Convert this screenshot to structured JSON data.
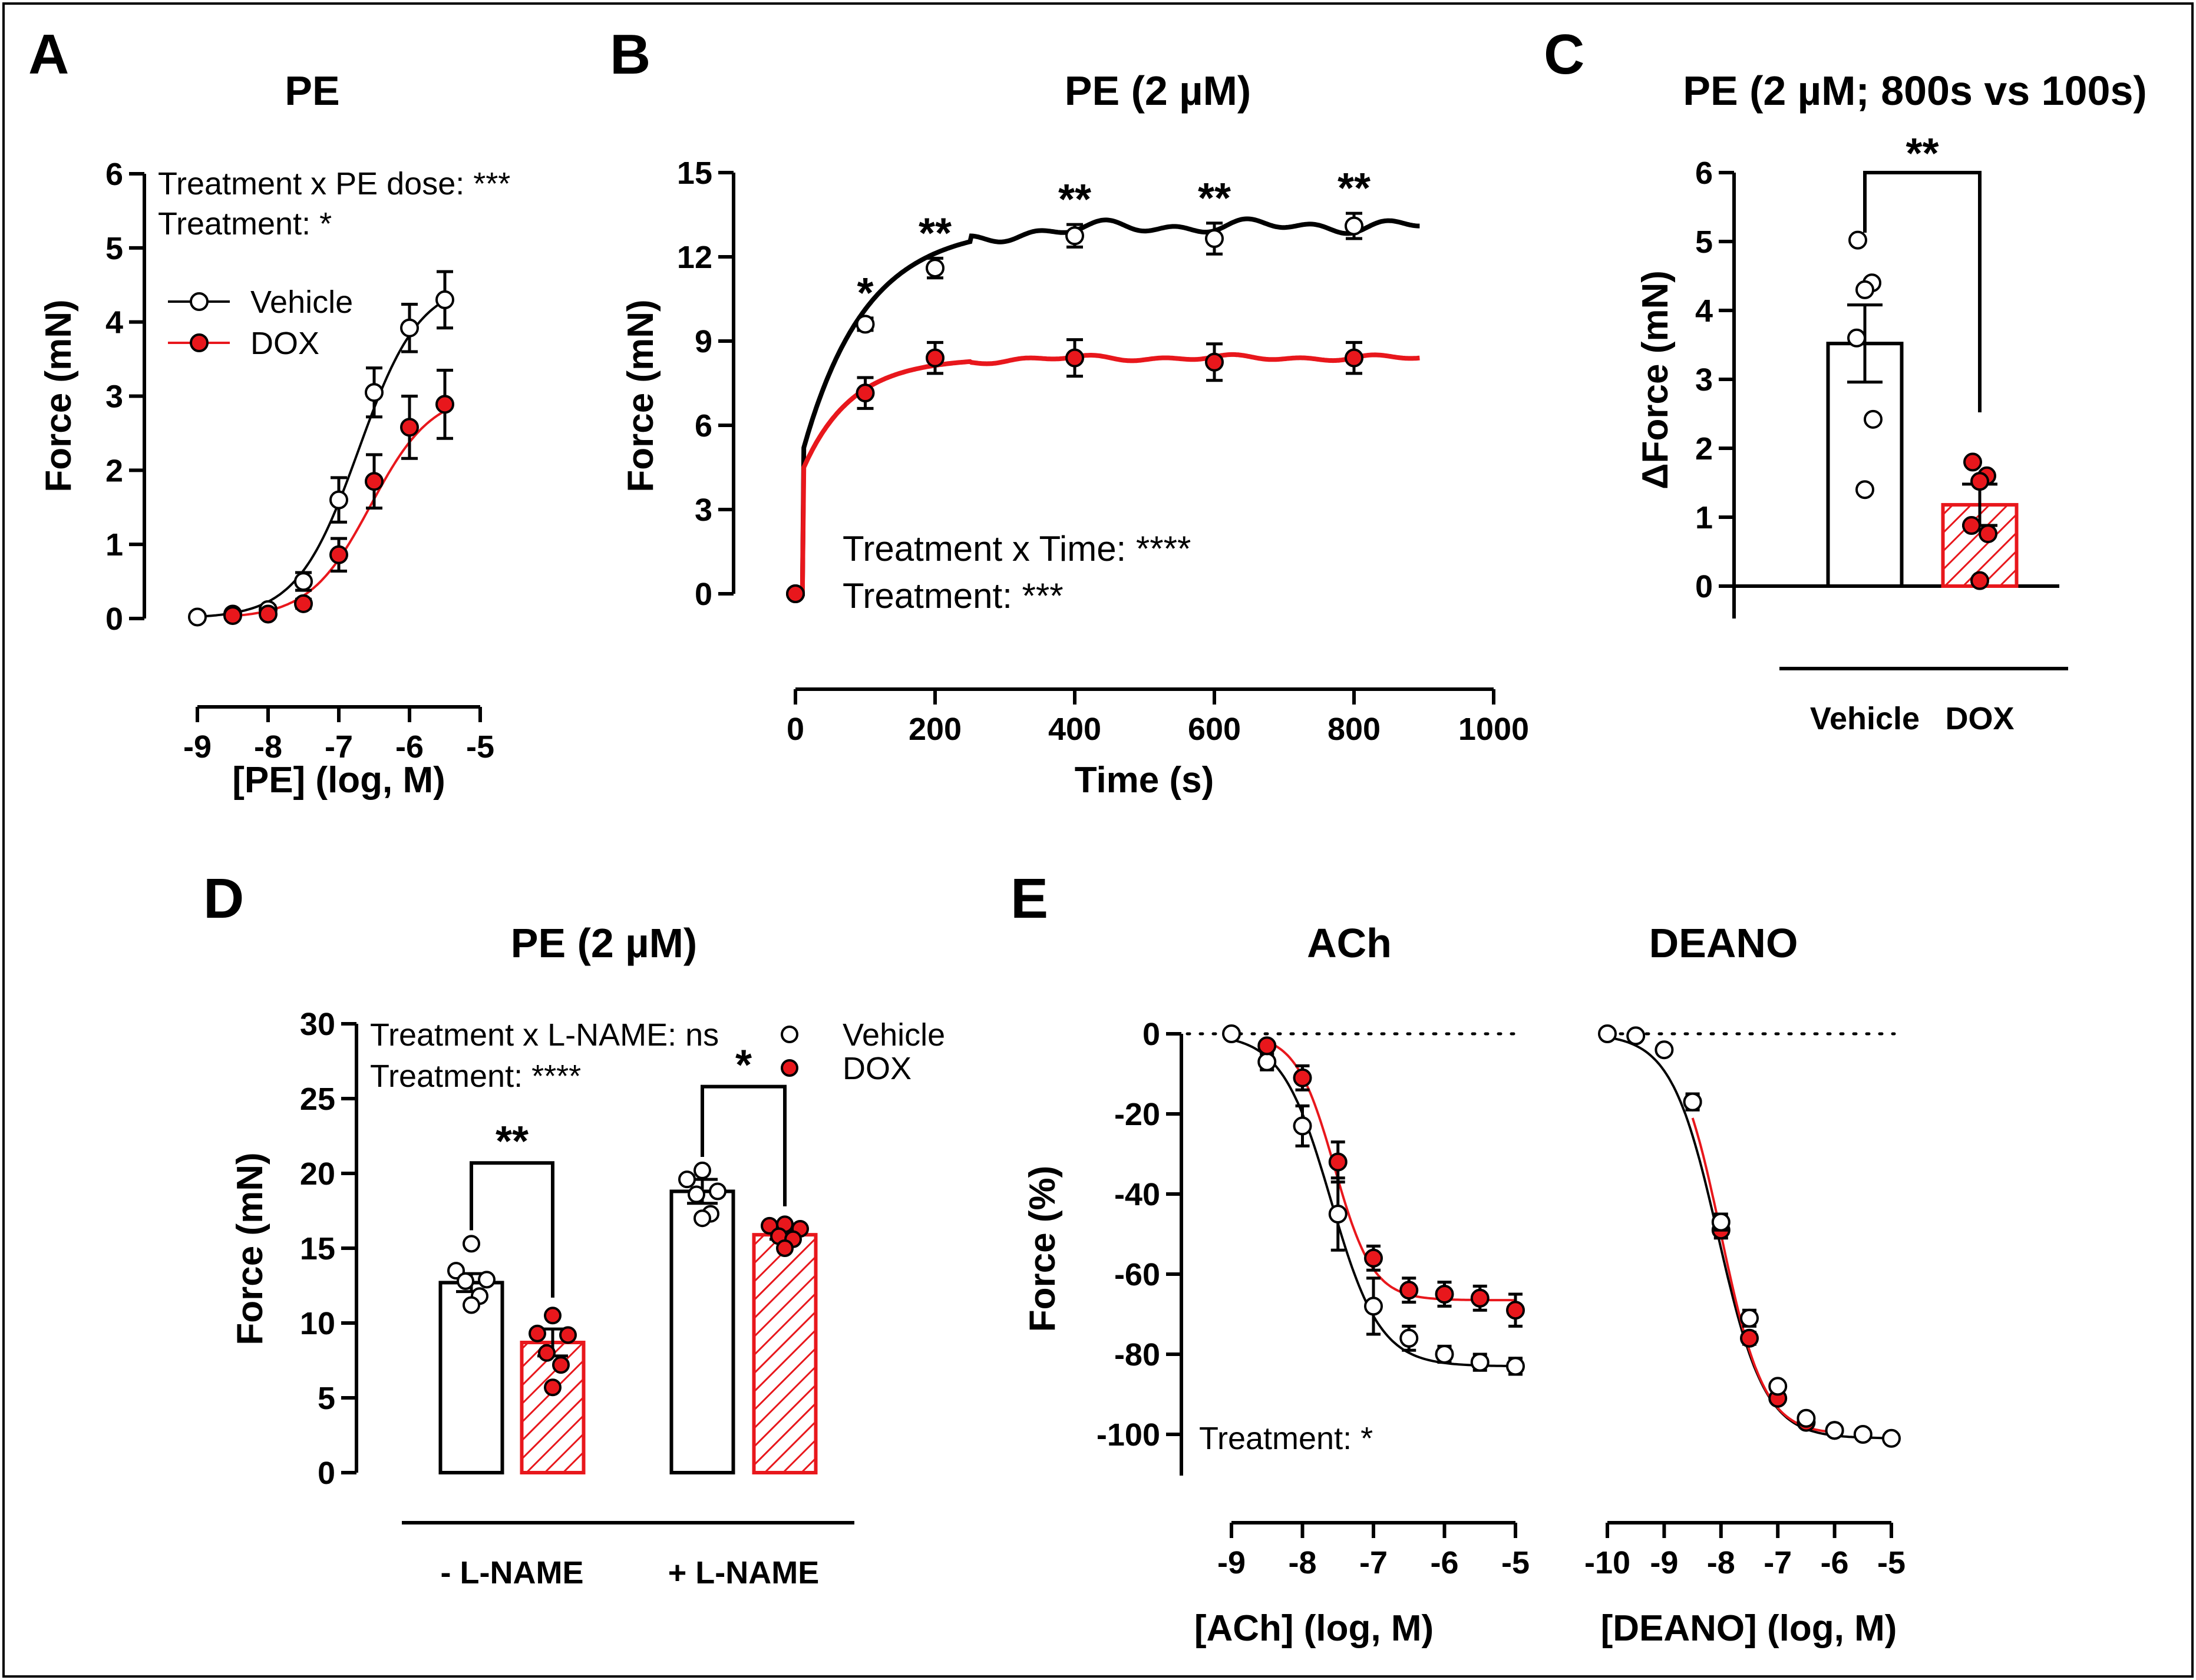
{
  "colors": {
    "vehicle": "#000000",
    "dox": "#e8171c",
    "white": "#ffffff"
  },
  "chart_data": [
    {
      "panel": "A",
      "type": "line",
      "title": "PE",
      "xlabel": "[PE] (log, M)",
      "ylabel": "Force (mN)",
      "xlim": [
        -9,
        -5
      ],
      "ylim": [
        0,
        6
      ],
      "xticks": [
        -9,
        -8,
        -7,
        -6,
        -5
      ],
      "yticks": [
        0,
        1,
        2,
        3,
        4,
        5,
        6
      ],
      "annotations": [
        "Treatment x PE dose: ***",
        "Treatment: *"
      ],
      "legend": [
        "Vehicle",
        "DOX"
      ],
      "series": [
        {
          "name": "Vehicle",
          "x": [
            -9,
            -8.5,
            -8,
            -7.5,
            -7,
            -6.5,
            -6,
            -5.5
          ],
          "y": [
            0.02,
            0.06,
            0.12,
            0.5,
            1.6,
            3.05,
            3.92,
            4.3
          ],
          "err": [
            0.02,
            0.03,
            0.05,
            0.12,
            0.3,
            0.33,
            0.32,
            0.38
          ]
        },
        {
          "name": "DOX",
          "x": [
            -8.5,
            -8,
            -7.5,
            -7,
            -6.5,
            -6,
            -5.5
          ],
          "y": [
            0.04,
            0.06,
            0.2,
            0.86,
            1.85,
            2.58,
            2.89
          ],
          "err": [
            0.02,
            0.03,
            0.06,
            0.22,
            0.36,
            0.42,
            0.46
          ]
        }
      ]
    },
    {
      "panel": "B",
      "type": "line",
      "title": "PE (2 µM)",
      "xlabel": "Time (s)",
      "ylabel": "Force (mN)",
      "xlim": [
        0,
        1000
      ],
      "ylim": [
        0,
        15
      ],
      "xticks": [
        0,
        200,
        400,
        600,
        800,
        1000
      ],
      "yticks": [
        0,
        3,
        6,
        9,
        12,
        15
      ],
      "annotations": [
        "Treatment x Time: ****",
        "Treatment: ***"
      ],
      "significance": [
        {
          "x": 100,
          "label": "*"
        },
        {
          "x": 200,
          "label": "**"
        },
        {
          "x": 400,
          "label": "**"
        },
        {
          "x": 600,
          "label": "**"
        },
        {
          "x": 800,
          "label": "**"
        }
      ],
      "series": [
        {
          "name": "Vehicle",
          "x": [
            0,
            100,
            200,
            400,
            600,
            800
          ],
          "y": [
            0,
            9.6,
            11.6,
            12.75,
            12.65,
            13.1
          ],
          "err": [
            0,
            0.22,
            0.35,
            0.4,
            0.55,
            0.45
          ]
        },
        {
          "name": "DOX",
          "x": [
            0,
            100,
            200,
            400,
            600,
            800
          ],
          "y": [
            0,
            7.15,
            8.4,
            8.4,
            8.25,
            8.4
          ],
          "err": [
            0,
            0.55,
            0.55,
            0.65,
            0.65,
            0.55
          ]
        }
      ]
    },
    {
      "panel": "C",
      "type": "bar",
      "title": "PE (2 µM; 800s vs 100s)",
      "xlabel": "",
      "ylabel": "ΔForce (mN)",
      "ylim": [
        0,
        6
      ],
      "yticks": [
        0,
        1,
        2,
        3,
        4,
        5,
        6
      ],
      "categories": [
        "Vehicle",
        "DOX"
      ],
      "values": [
        3.52,
        1.18
      ],
      "err": [
        0.56,
        0.3
      ],
      "points": [
        [
          5.02,
          4.4,
          4.3,
          3.6,
          2.42,
          1.4
        ],
        [
          1.8,
          1.6,
          1.52,
          0.88,
          0.76,
          0.08
        ]
      ],
      "significance": "**"
    },
    {
      "panel": "D",
      "type": "bar",
      "title": "PE (2 µM)",
      "xlabel": "",
      "ylabel": "Force (mN)",
      "ylim": [
        0,
        30
      ],
      "yticks": [
        0,
        5,
        10,
        15,
        20,
        25,
        30
      ],
      "groups": [
        "- L-NAME",
        "+ L-NAME"
      ],
      "annotations": [
        "Treatment x L-NAME: ns",
        "Treatment: ****"
      ],
      "legend": [
        "Vehicle",
        "DOX"
      ],
      "series": [
        {
          "name": "Vehicle",
          "values": [
            12.7,
            18.8
          ],
          "err": [
            0.6,
            0.8
          ],
          "points": [
            [
              15.3,
              13.5,
              12.9,
              12.8,
              11.8,
              11.2
            ],
            [
              20.2,
              19.6,
              18.8,
              18.6,
              17.3,
              17.0
            ]
          ]
        },
        {
          "name": "DOX",
          "values": [
            8.7,
            15.9
          ],
          "err": [
            0.9,
            0.3
          ],
          "points": [
            [
              10.5,
              9.3,
              9.2,
              8.0,
              7.2,
              5.7
            ],
            [
              16.6,
              16.5,
              16.3,
              15.8,
              15.6,
              15.0
            ]
          ]
        }
      ],
      "significance": [
        "**",
        "*"
      ]
    },
    {
      "panel": "E",
      "type": "line",
      "title": "ACh",
      "xlabel": "[ACh] (log, M)",
      "ylabel": "Force (%)",
      "xlim": [
        -9,
        -5
      ],
      "ylim": [
        -100,
        0
      ],
      "xticks": [
        -9,
        -8,
        -7,
        -6,
        -5
      ],
      "yticks": [
        0,
        -20,
        -40,
        -60,
        -80,
        -100
      ],
      "annotations": [
        "Treatment: *"
      ],
      "series": [
        {
          "name": "Vehicle",
          "x": [
            -9,
            -8.5,
            -8,
            -7.5,
            -7,
            -6.5,
            -6,
            -5.5,
            -5
          ],
          "y": [
            0,
            -7,
            -23,
            -45,
            -68,
            -76,
            -80,
            -82,
            -83
          ],
          "err": [
            0,
            2,
            5,
            9,
            7,
            3,
            2,
            2,
            2
          ]
        },
        {
          "name": "DOX",
          "x": [
            -8.5,
            -8,
            -7.5,
            -7,
            -6.5,
            -6,
            -5.5,
            -5
          ],
          "y": [
            -3,
            -11,
            -32,
            -56,
            -64,
            -65,
            -66,
            -69
          ],
          "err": [
            1,
            3,
            5,
            3,
            3,
            3,
            3,
            4
          ]
        }
      ]
    },
    {
      "panel": "E",
      "type": "line",
      "title": "DEANO",
      "xlabel": "[DEANO] (log, M)",
      "ylabel": "",
      "xlim": [
        -10,
        -5
      ],
      "ylim": [
        -100,
        0
      ],
      "xticks": [
        -10,
        -9,
        -8,
        -7,
        -6,
        -5
      ],
      "series": [
        {
          "name": "Vehicle",
          "x": [
            -10,
            -9.5,
            -9,
            -8.5,
            -8,
            -7.5,
            -7,
            -6.5,
            -6,
            -5.5,
            -5
          ],
          "y": [
            0,
            -0.5,
            -4,
            -17,
            -47,
            -71,
            -88,
            -96,
            -99,
            -100,
            -101
          ],
          "err": [
            0,
            0.5,
            1,
            2,
            2,
            2,
            1,
            1,
            1,
            0.5,
            0.5
          ]
        },
        {
          "name": "DOX",
          "x": [
            -8.5,
            -8,
            -7.5,
            -7,
            -6.5,
            -6
          ],
          "y": [
            -17,
            -49,
            -76,
            -91,
            -97,
            -99
          ],
          "err": [
            1.5,
            2,
            1.5,
            1,
            0.5,
            0.5
          ]
        }
      ]
    }
  ],
  "panel_letters": [
    "A",
    "B",
    "C",
    "D",
    "E"
  ]
}
